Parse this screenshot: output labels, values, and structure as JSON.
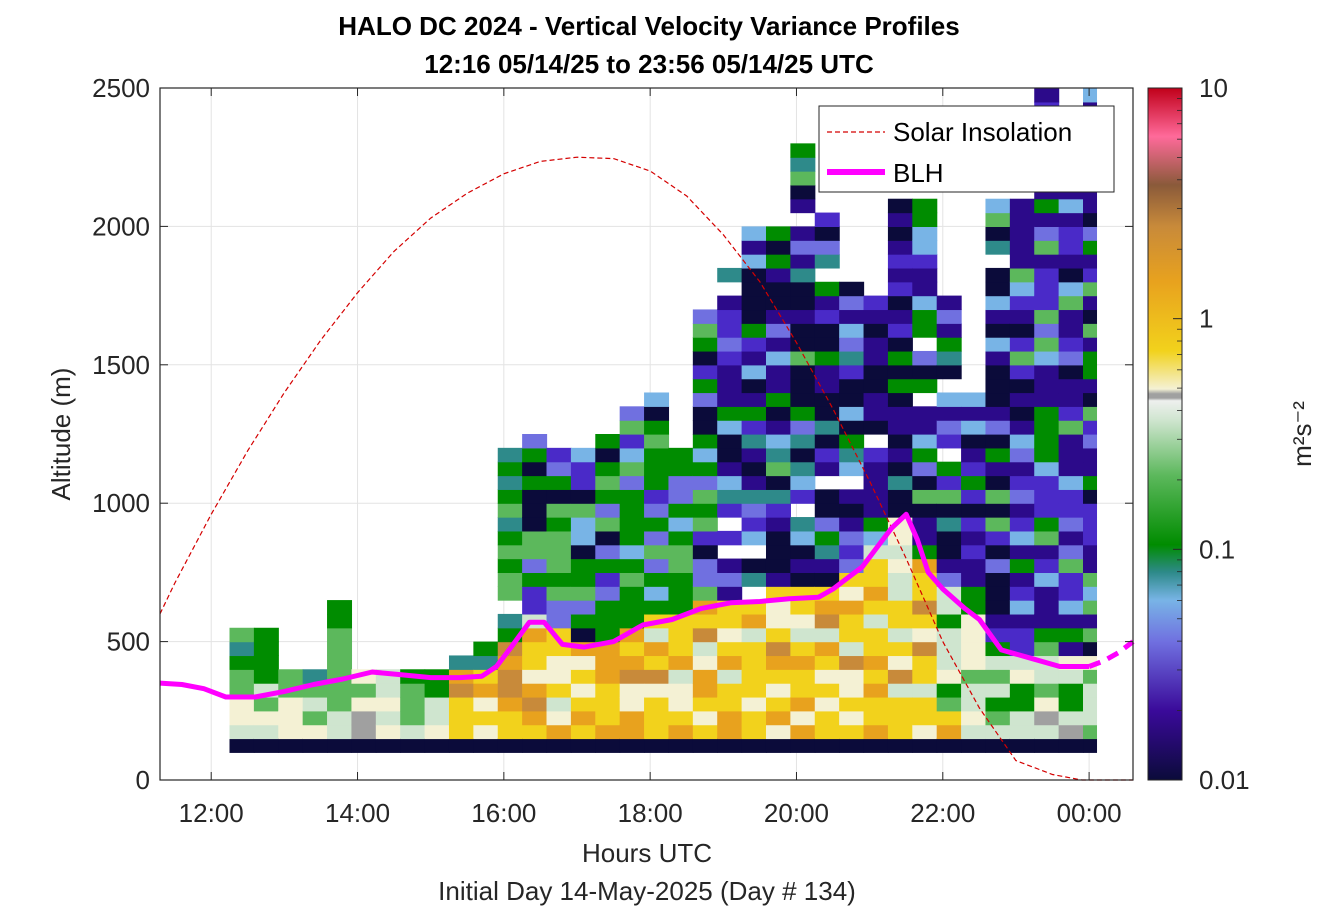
{
  "chart_data": {
    "type": "heatmap",
    "title": "HALO DC 2024 - Vertical Velocity Variance Profiles",
    "subtitle": "12:16 05/14/25 to 23:56 05/14/25  UTC",
    "xlabel": "Hours UTC",
    "xlabel2": "Initial Day 14-May-2025 (Day # 134)",
    "ylabel": "Altitude (m)",
    "xlim": [
      11.3,
      24.6
    ],
    "ylim": [
      0,
      2500
    ],
    "x_ticks": [
      {
        "value": 12,
        "label": "12:00"
      },
      {
        "value": 14,
        "label": "14:00"
      },
      {
        "value": 16,
        "label": "16:00"
      },
      {
        "value": 18,
        "label": "18:00"
      },
      {
        "value": 20,
        "label": "20:00"
      },
      {
        "value": 22,
        "label": "22:00"
      },
      {
        "value": 24,
        "label": "00:00"
      }
    ],
    "y_ticks": [
      {
        "value": 0,
        "label": "0"
      },
      {
        "value": 500,
        "label": "500"
      },
      {
        "value": 1000,
        "label": "1000"
      },
      {
        "value": 1500,
        "label": "1500"
      },
      {
        "value": 2000,
        "label": "2000"
      },
      {
        "value": 2500,
        "label": "2500"
      }
    ],
    "grid": true,
    "legend_position": "top-right",
    "colorbar": {
      "label": "m²s⁻²",
      "scale": "log",
      "range": [
        0.01,
        10
      ],
      "ticks": [
        {
          "value": 0.01,
          "label": "0.01"
        },
        {
          "value": 0.1,
          "label": "0.1"
        },
        {
          "value": 1,
          "label": "1"
        },
        {
          "value": 10,
          "label": "10"
        }
      ]
    },
    "series": [
      {
        "name": "Solar Insolation",
        "style": "dashed",
        "color": "#d40000",
        "x": [
          11.3,
          11.5,
          12,
          12.5,
          13,
          13.5,
          14,
          14.5,
          15,
          15.5,
          16,
          16.5,
          17,
          17.5,
          18,
          18.5,
          19,
          19.5,
          20,
          20.5,
          21,
          21.5,
          22,
          22.5,
          23,
          23.5,
          23.9,
          24.6
        ],
        "y": [
          600,
          710,
          960,
          1190,
          1400,
          1590,
          1760,
          1910,
          2030,
          2120,
          2190,
          2235,
          2250,
          2245,
          2200,
          2110,
          1970,
          1800,
          1580,
          1340,
          1080,
          800,
          500,
          260,
          70,
          20,
          0,
          0
        ]
      },
      {
        "name": "BLH",
        "style": "solid",
        "color": "#ff00ff",
        "x": [
          11.3,
          11.6,
          11.9,
          12.2,
          12.6,
          13.0,
          13.4,
          13.8,
          14.2,
          14.6,
          15.0,
          15.4,
          15.7,
          15.9,
          16.1,
          16.35,
          16.55,
          16.8,
          17.1,
          17.5,
          17.9,
          18.3,
          18.7,
          19.1,
          19.5,
          19.9,
          20.3,
          20.5,
          20.7,
          20.9,
          21.1,
          21.3,
          21.5,
          21.65,
          21.8,
          22.0,
          22.3,
          22.5,
          22.8,
          23.2,
          23.6,
          24.0,
          24.2,
          24.4,
          24.6
        ],
        "y": [
          350,
          345,
          330,
          300,
          300,
          320,
          345,
          365,
          390,
          380,
          370,
          370,
          375,
          410,
          480,
          570,
          570,
          490,
          480,
          500,
          560,
          580,
          620,
          640,
          645,
          655,
          660,
          690,
          730,
          770,
          840,
          910,
          960,
          870,
          750,
          690,
          620,
          580,
          470,
          440,
          410,
          410,
          430,
          460,
          500
        ]
      }
    ]
  }
}
